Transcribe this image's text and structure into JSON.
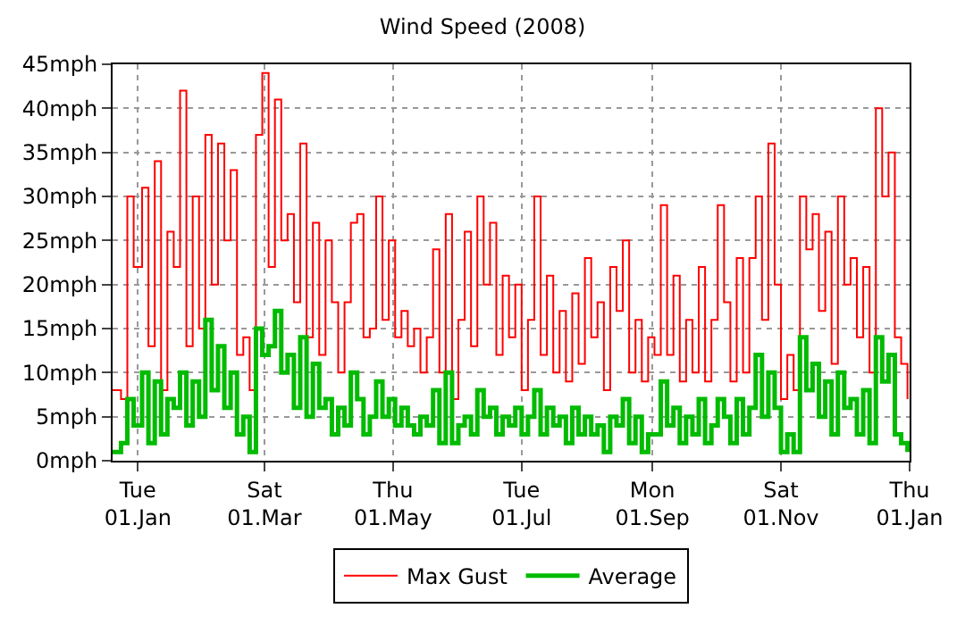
{
  "chart_data": {
    "type": "step",
    "title": "Wind Speed (2008)",
    "x": [
      "2007-12-20",
      "2007-12-24",
      "2007-12-27",
      "2007-12-30",
      "2008-01-03",
      "2008-01-06",
      "2008-01-09",
      "2008-01-12",
      "2008-01-15",
      "2008-01-18",
      "2008-01-21",
      "2008-01-24",
      "2008-01-27",
      "2008-01-30",
      "2008-02-02",
      "2008-02-05",
      "2008-02-08",
      "2008-02-11",
      "2008-02-14",
      "2008-02-17",
      "2008-02-20",
      "2008-02-23",
      "2008-02-26",
      "2008-02-29",
      "2008-03-03",
      "2008-03-06",
      "2008-03-09",
      "2008-03-12",
      "2008-03-15",
      "2008-03-18",
      "2008-03-21",
      "2008-03-24",
      "2008-03-27",
      "2008-03-30",
      "2008-04-02",
      "2008-04-05",
      "2008-04-08",
      "2008-04-11",
      "2008-04-14",
      "2008-04-17",
      "2008-04-20",
      "2008-04-23",
      "2008-04-26",
      "2008-04-29",
      "2008-05-02",
      "2008-05-05",
      "2008-05-08",
      "2008-05-11",
      "2008-05-14",
      "2008-05-17",
      "2008-05-20",
      "2008-05-23",
      "2008-05-26",
      "2008-05-29",
      "2008-06-01",
      "2008-06-04",
      "2008-06-07",
      "2008-06-10",
      "2008-06-13",
      "2008-06-16",
      "2008-06-19",
      "2008-06-22",
      "2008-06-25",
      "2008-06-28",
      "2008-07-01",
      "2008-07-04",
      "2008-07-07",
      "2008-07-10",
      "2008-07-13",
      "2008-07-16",
      "2008-07-19",
      "2008-07-22",
      "2008-07-25",
      "2008-07-28",
      "2008-07-31",
      "2008-08-03",
      "2008-08-06",
      "2008-08-09",
      "2008-08-12",
      "2008-08-15",
      "2008-08-18",
      "2008-08-21",
      "2008-08-24",
      "2008-08-27",
      "2008-08-30",
      "2008-09-02",
      "2008-09-05",
      "2008-09-08",
      "2008-09-11",
      "2008-09-14",
      "2008-09-17",
      "2008-09-20",
      "2008-09-23",
      "2008-09-26",
      "2008-09-29",
      "2008-10-02",
      "2008-10-05",
      "2008-10-08",
      "2008-10-11",
      "2008-10-14",
      "2008-10-17",
      "2008-10-20",
      "2008-10-23",
      "2008-10-26",
      "2008-10-29",
      "2008-11-01",
      "2008-11-04",
      "2008-11-07",
      "2008-11-10",
      "2008-11-13",
      "2008-11-16",
      "2008-11-19",
      "2008-11-22",
      "2008-11-25",
      "2008-11-28",
      "2008-12-01",
      "2008-12-04",
      "2008-12-07",
      "2008-12-10",
      "2008-12-13",
      "2008-12-16",
      "2008-12-19",
      "2008-12-22",
      "2008-12-25",
      "2008-12-28",
      "2008-12-31"
    ],
    "series": [
      {
        "name": "Max Gust",
        "color": "#ff0000",
        "values": [
          8,
          7,
          30,
          22,
          31,
          13,
          34,
          8,
          26,
          22,
          42,
          13,
          30,
          15,
          37,
          20,
          36,
          25,
          33,
          12,
          14,
          8,
          37,
          44,
          22,
          41,
          25,
          28,
          18,
          36,
          14,
          27,
          12,
          25,
          18,
          10,
          18,
          27,
          28,
          14,
          15,
          30,
          16,
          25,
          14,
          17,
          13,
          15,
          10,
          14,
          24,
          10,
          28,
          7,
          16,
          26,
          13,
          30,
          20,
          27,
          12,
          21,
          14,
          20,
          8,
          16,
          30,
          12,
          21,
          10,
          17,
          9,
          19,
          11,
          23,
          14,
          18,
          8,
          22,
          17,
          25,
          10,
          16,
          9,
          14,
          12,
          29,
          12,
          21,
          9,
          16,
          10,
          22,
          9,
          16,
          29,
          18,
          9,
          23,
          10,
          23,
          30,
          16,
          36,
          20,
          7,
          12,
          8,
          30,
          24,
          28,
          17,
          26,
          11,
          30,
          20,
          23,
          14,
          22,
          10,
          40,
          30,
          35,
          14,
          11,
          7
        ]
      },
      {
        "name": "Average",
        "color": "#00bb00",
        "values": [
          1,
          2,
          7,
          4,
          10,
          2,
          9,
          3,
          7,
          6,
          10,
          4,
          9,
          5,
          16,
          8,
          13,
          6,
          10,
          3,
          5,
          1,
          15,
          12,
          13,
          17,
          10,
          12,
          6,
          14,
          5,
          11,
          6,
          7,
          3,
          6,
          4,
          10,
          7,
          3,
          5,
          9,
          5,
          7,
          4,
          6,
          4,
          3,
          5,
          4,
          8,
          2,
          10,
          2,
          4,
          5,
          3,
          8,
          5,
          6,
          3,
          5,
          4,
          6,
          3,
          5,
          8,
          3,
          6,
          4,
          5,
          2,
          6,
          3,
          5,
          3,
          4,
          1,
          5,
          4,
          7,
          2,
          5,
          1,
          3,
          3,
          9,
          4,
          6,
          2,
          5,
          3,
          7,
          2,
          4,
          7,
          5,
          2,
          7,
          3,
          6,
          12,
          5,
          10,
          6,
          1,
          3,
          1,
          14,
          8,
          11,
          5,
          9,
          3,
          10,
          6,
          7,
          3,
          8,
          2,
          14,
          9,
          12,
          3,
          2,
          1
        ]
      }
    ],
    "xlim": [
      "2007-12-20",
      "2009-01-01"
    ],
    "xticks": [
      {
        "value": "2008-01-01",
        "label": "Tue\n01.Jan"
      },
      {
        "value": "2008-03-01",
        "label": "Sat\n01.Mar"
      },
      {
        "value": "2008-05-01",
        "label": "Thu\n01.May"
      },
      {
        "value": "2008-07-01",
        "label": "Tue\n01.Jul"
      },
      {
        "value": "2008-09-01",
        "label": "Mon\n01.Sep"
      },
      {
        "value": "2008-11-01",
        "label": "Sat\n01.Nov"
      },
      {
        "value": "2009-01-01",
        "label": "Thu\n01.Jan"
      }
    ],
    "ylim": [
      0,
      45
    ],
    "yticks": [
      {
        "value": 0,
        "label": "0mph"
      },
      {
        "value": 5,
        "label": "5mph"
      },
      {
        "value": 10,
        "label": "10mph"
      },
      {
        "value": 15,
        "label": "15mph"
      },
      {
        "value": 20,
        "label": "20mph"
      },
      {
        "value": 25,
        "label": "25mph"
      },
      {
        "value": 30,
        "label": "30mph"
      },
      {
        "value": 35,
        "label": "35mph"
      },
      {
        "value": 40,
        "label": "40mph"
      },
      {
        "value": 45,
        "label": "45mph"
      }
    ],
    "grid": true,
    "legend": "bottom"
  }
}
